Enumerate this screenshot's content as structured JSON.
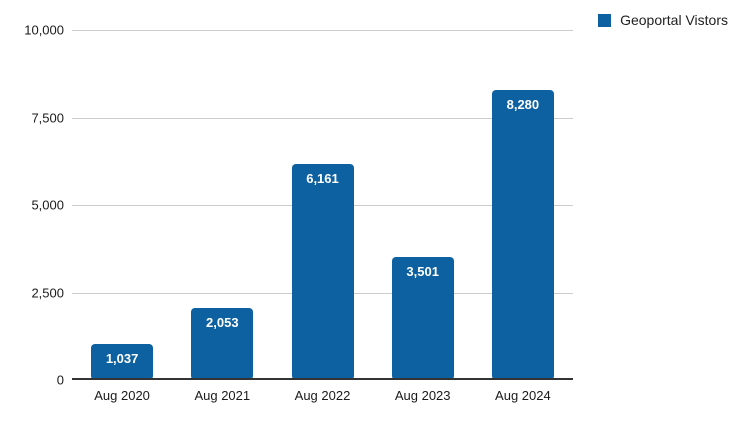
{
  "colors": {
    "bar": "#0e61a0",
    "grid": "#cccccc",
    "axis": "#333333",
    "value_label": "#ffffff",
    "axis_text": "#1a1a1a",
    "legend_text": "#1f1f1f",
    "background": "#ffffff"
  },
  "legend": {
    "label": "Geoportal Vistors",
    "swatch_icon": "blue-square"
  },
  "chart_data": {
    "type": "bar",
    "title": "",
    "xlabel": "",
    "ylabel": "",
    "categories": [
      "Aug 2020",
      "Aug 2021",
      "Aug 2022",
      "Aug 2023",
      "Aug 2024"
    ],
    "values": [
      1037,
      2053,
      6161,
      3501,
      8280
    ],
    "value_labels": [
      "1,037",
      "2,053",
      "6,161",
      "3,501",
      "8,280"
    ],
    "ylim": [
      0,
      10000
    ],
    "yticks": [
      0,
      2500,
      5000,
      7500,
      10000
    ],
    "ytick_labels": [
      "0",
      "2,500",
      "5,000",
      "7,500",
      "10,000"
    ],
    "grid": "horizontal",
    "legend_entries": [
      "Geoportal Vistors"
    ],
    "legend_position": "top-right"
  }
}
